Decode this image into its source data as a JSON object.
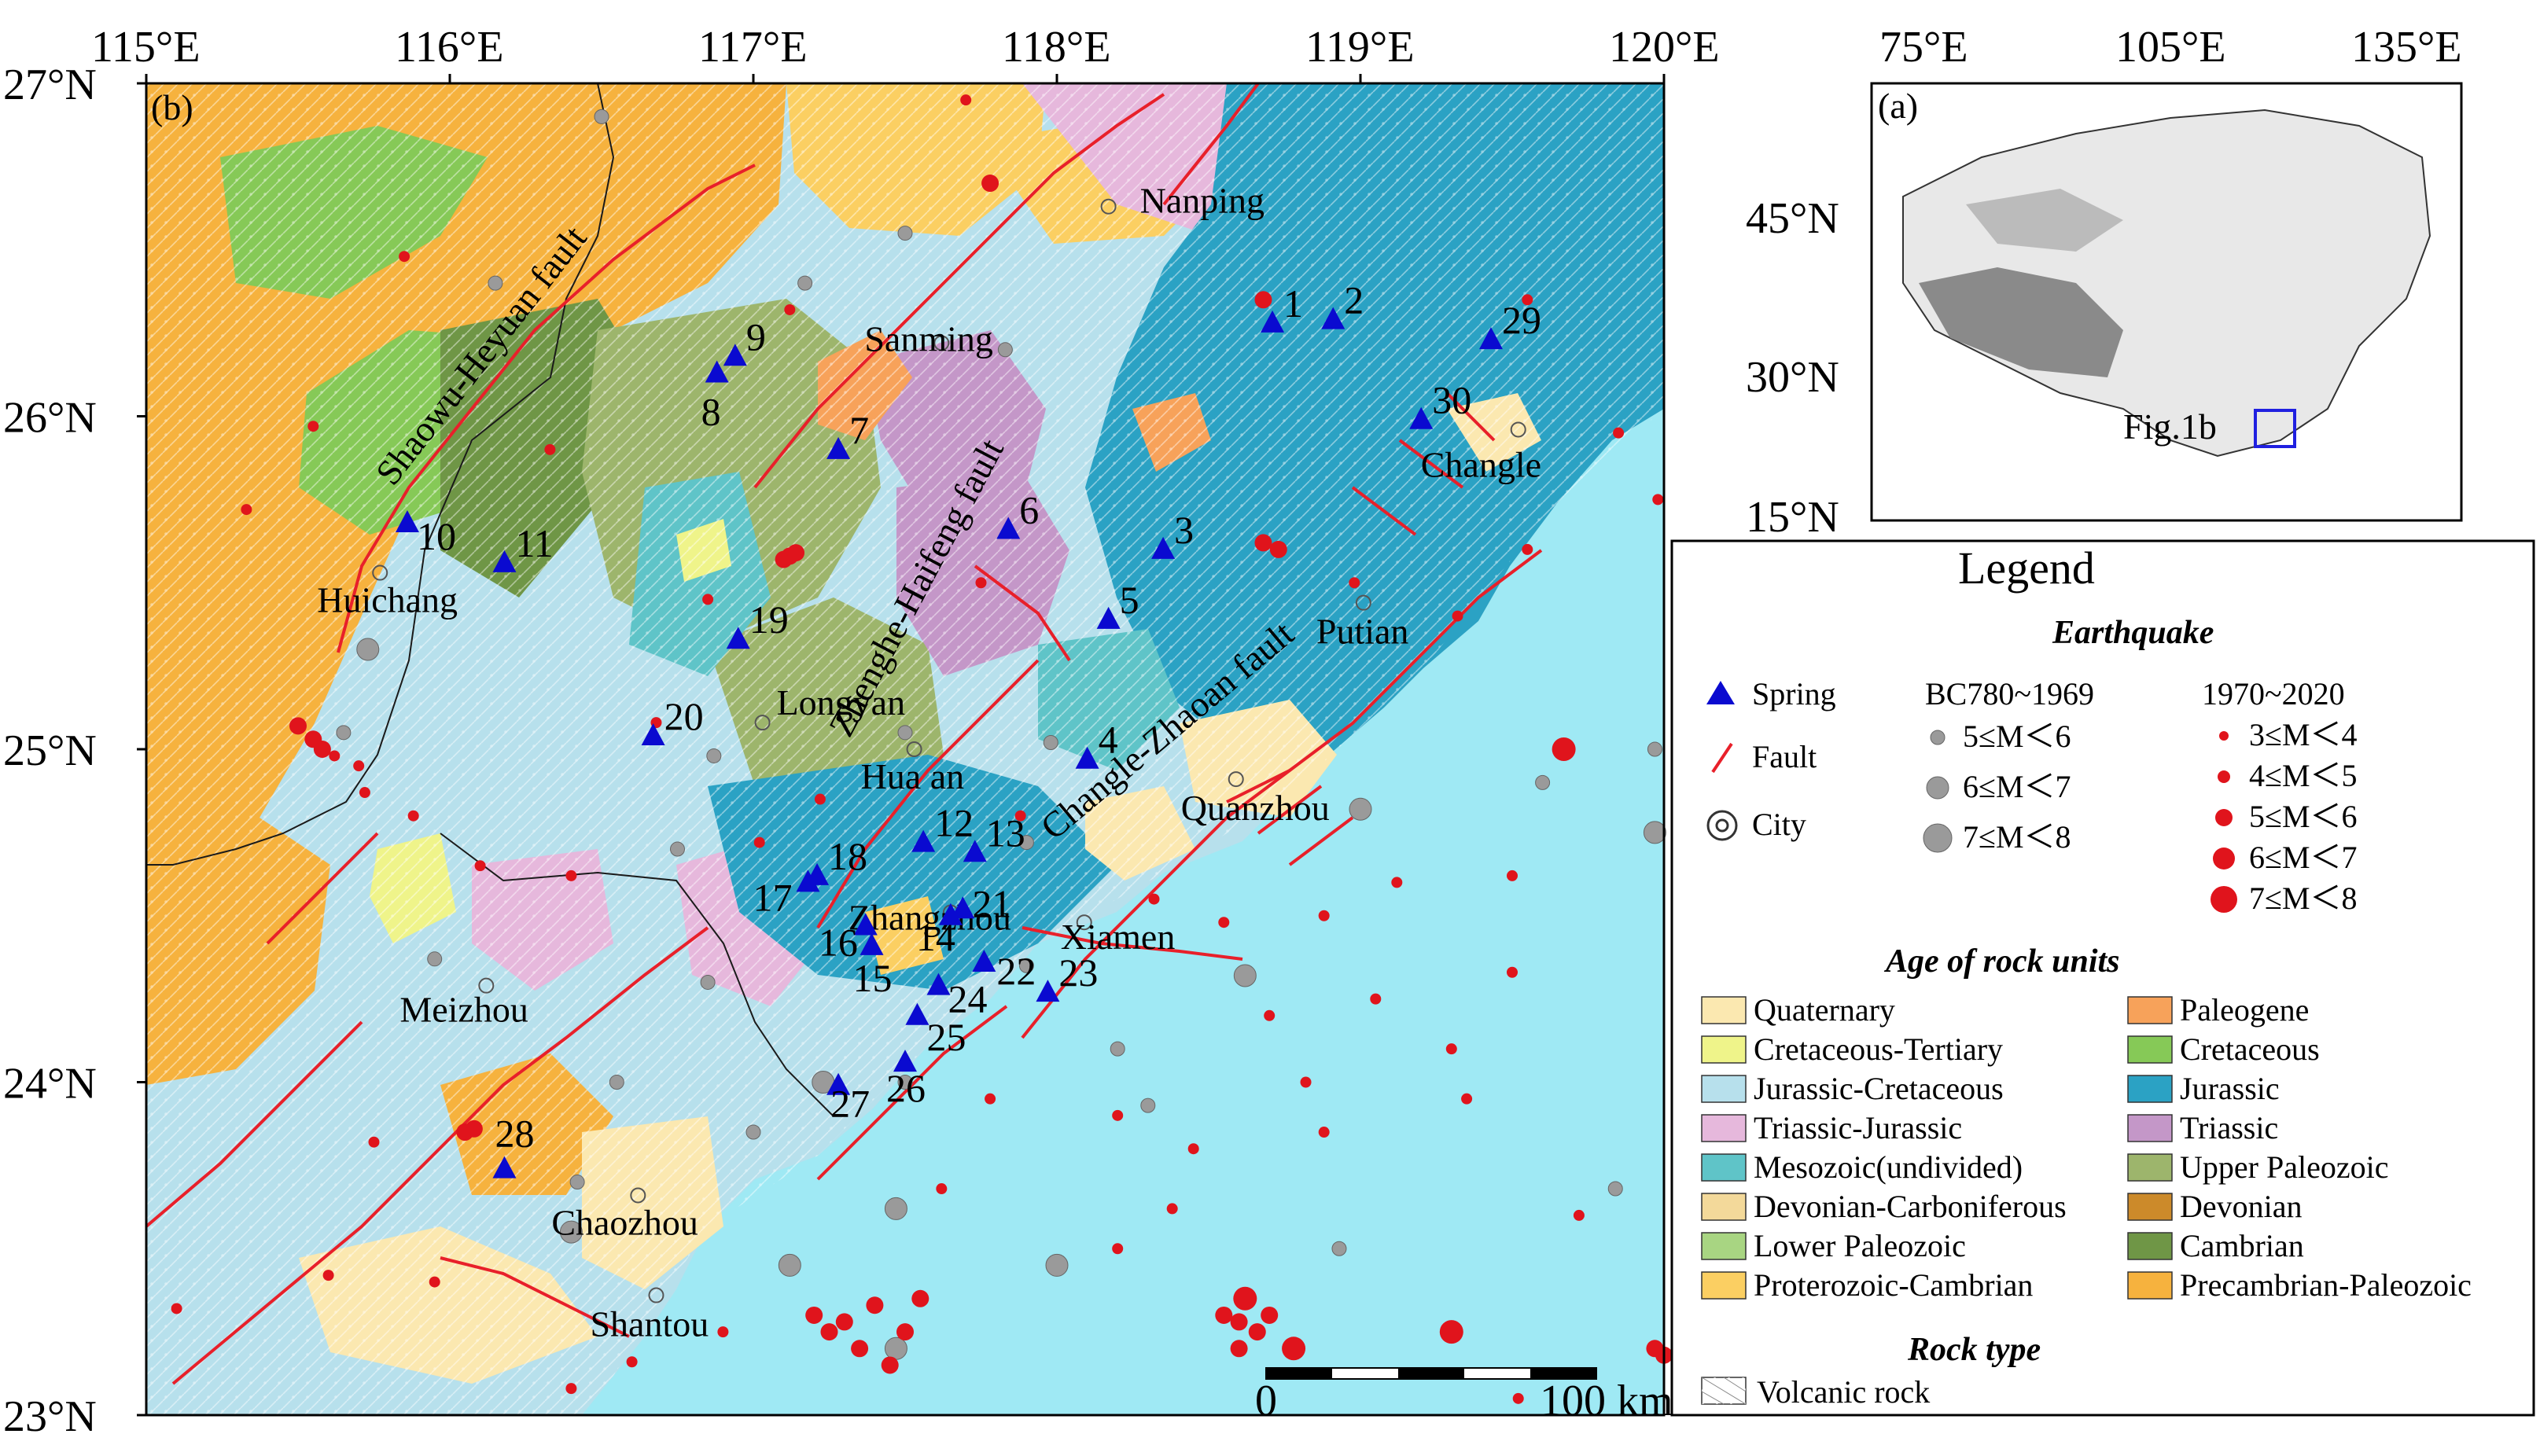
{
  "panel_b": {
    "label": "(b)",
    "lon_ticks": [
      "115°E",
      "116°E",
      "117°E",
      "118°E",
      "119°E",
      "120°E"
    ],
    "lat_ticks": [
      "27°N",
      "26°N",
      "25°N",
      "24°N",
      "23°N"
    ],
    "faults": [
      "Shaowu-Heyuan fault",
      "Zhenghe-Haifeng fault",
      "Changle-Zhaoan fault"
    ],
    "cities": [
      {
        "name": "Nanping",
        "lon": 118.17,
        "lat": 26.63
      },
      {
        "name": "Sanming",
        "lon": 117.62,
        "lat": 26.22
      },
      {
        "name": "Huichang",
        "lon": 115.77,
        "lat": 25.53
      },
      {
        "name": "Longyan",
        "lon": 117.03,
        "lat": 25.08
      },
      {
        "name": "Hua an",
        "lon": 117.53,
        "lat": 25.0
      },
      {
        "name": "Quanzhou",
        "lon": 118.59,
        "lat": 24.91
      },
      {
        "name": "Putian",
        "lon": 119.01,
        "lat": 25.44
      },
      {
        "name": "Changle",
        "lon": 119.52,
        "lat": 25.96
      },
      {
        "name": "Zhangzhou",
        "lon": 117.65,
        "lat": 24.51
      },
      {
        "name": "Xiamen",
        "lon": 118.09,
        "lat": 24.48
      },
      {
        "name": "Meizhou",
        "lon": 116.12,
        "lat": 24.29
      },
      {
        "name": "Chaozhou",
        "lon": 116.62,
        "lat": 23.66
      },
      {
        "name": "Shantou",
        "lon": 116.68,
        "lat": 23.36
      }
    ],
    "springs": [
      {
        "id": "1",
        "lon": 118.71,
        "lat": 26.28
      },
      {
        "id": "2",
        "lon": 118.91,
        "lat": 26.29
      },
      {
        "id": "3",
        "lon": 118.35,
        "lat": 25.6
      },
      {
        "id": "4",
        "lon": 118.1,
        "lat": 24.97
      },
      {
        "id": "5",
        "lon": 118.17,
        "lat": 25.39
      },
      {
        "id": "6",
        "lon": 117.84,
        "lat": 25.66
      },
      {
        "id": "7",
        "lon": 117.28,
        "lat": 25.9
      },
      {
        "id": "8",
        "lon": 116.88,
        "lat": 26.13
      },
      {
        "id": "9",
        "lon": 116.94,
        "lat": 26.18
      },
      {
        "id": "10",
        "lon": 115.86,
        "lat": 25.68
      },
      {
        "id": "11",
        "lon": 116.18,
        "lat": 25.56
      },
      {
        "id": "12",
        "lon": 117.56,
        "lat": 24.72
      },
      {
        "id": "13",
        "lon": 117.73,
        "lat": 24.69
      },
      {
        "id": "14",
        "lon": 117.65,
        "lat": 24.5
      },
      {
        "id": "15",
        "lon": 117.39,
        "lat": 24.41
      },
      {
        "id": "16",
        "lon": 117.37,
        "lat": 24.47
      },
      {
        "id": "17",
        "lon": 117.18,
        "lat": 24.6
      },
      {
        "id": "18",
        "lon": 117.21,
        "lat": 24.62
      },
      {
        "id": "19",
        "lon": 116.95,
        "lat": 25.33
      },
      {
        "id": "20",
        "lon": 116.67,
        "lat": 25.04
      },
      {
        "id": "21",
        "lon": 117.69,
        "lat": 24.52
      },
      {
        "id": "22",
        "lon": 117.76,
        "lat": 24.36
      },
      {
        "id": "23",
        "lon": 117.97,
        "lat": 24.27
      },
      {
        "id": "24",
        "lon": 117.61,
        "lat": 24.29
      },
      {
        "id": "25",
        "lon": 117.54,
        "lat": 24.2
      },
      {
        "id": "26",
        "lon": 117.5,
        "lat": 24.06
      },
      {
        "id": "27",
        "lon": 117.28,
        "lat": 23.99
      },
      {
        "id": "28",
        "lon": 116.18,
        "lat": 23.74
      },
      {
        "id": "29",
        "lon": 119.43,
        "lat": 26.23
      },
      {
        "id": "30",
        "lon": 119.2,
        "lat": 25.99
      }
    ],
    "scale_bar": {
      "start_label": "0",
      "end_label": "100 km"
    }
  },
  "panel_a": {
    "label": "(a)",
    "lon_ticks": [
      "75°E",
      "105°E",
      "135°E"
    ],
    "lat_ticks": [
      "45°N",
      "30°N",
      "15°N"
    ],
    "inset_label": "Fig.1b"
  },
  "legend": {
    "title": "Legend",
    "earthquake_heading": "Earthquake",
    "spring_label": "Spring",
    "fault_label": "Fault",
    "city_label": "City",
    "historic_heading": "BC780~1969",
    "historic_classes": [
      "5≤M＜6",
      "6≤M＜7",
      "7≤M＜8"
    ],
    "modern_heading": "1970~2020",
    "modern_classes": [
      "3≤M＜4",
      "4≤M＜5",
      "5≤M＜6",
      "6≤M＜7",
      "7≤M＜8"
    ],
    "rock_age_heading": "Age of rock units",
    "rock_units": [
      {
        "name": "Quaternary",
        "color": "#fbe8b0"
      },
      {
        "name": "Paleogene",
        "color": "#f7a25a"
      },
      {
        "name": "Cretaceous-Tertiary",
        "color": "#eff48a"
      },
      {
        "name": "Cretaceous",
        "color": "#86c957"
      },
      {
        "name": "Jurassic-Cretaceous",
        "color": "#b7e0ec"
      },
      {
        "name": "Jurassic",
        "color": "#2ba2c4"
      },
      {
        "name": "Triassic-Jurassic",
        "color": "#e6b8dc"
      },
      {
        "name": "Triassic",
        "color": "#c497c8"
      },
      {
        "name": "Mesozoic(undivided)",
        "color": "#5fc4c8"
      },
      {
        "name": "Upper Paleozoic",
        "color": "#9db56c"
      },
      {
        "name": "Devonian-Carboniferous",
        "color": "#f3d99a"
      },
      {
        "name": "Devonian",
        "color": "#cc8a2a"
      },
      {
        "name": "Lower Paleozoic",
        "color": "#a8d582"
      },
      {
        "name": "Cambrian",
        "color": "#6f9646"
      },
      {
        "name": "Proterozoic-Cambrian",
        "color": "#fbcf62"
      },
      {
        "name": "Precambrian-Paleozoic",
        "color": "#f6b23e"
      }
    ],
    "rock_type_heading": "Rock type",
    "volcanic_label": "Volcanic rock"
  },
  "colors": {
    "sea": "#9fe9f4",
    "spring": "#0a0ad0",
    "fault": "#e8202a",
    "quake_modern": "#e0141c",
    "quake_historic": "#9a9a9a"
  }
}
